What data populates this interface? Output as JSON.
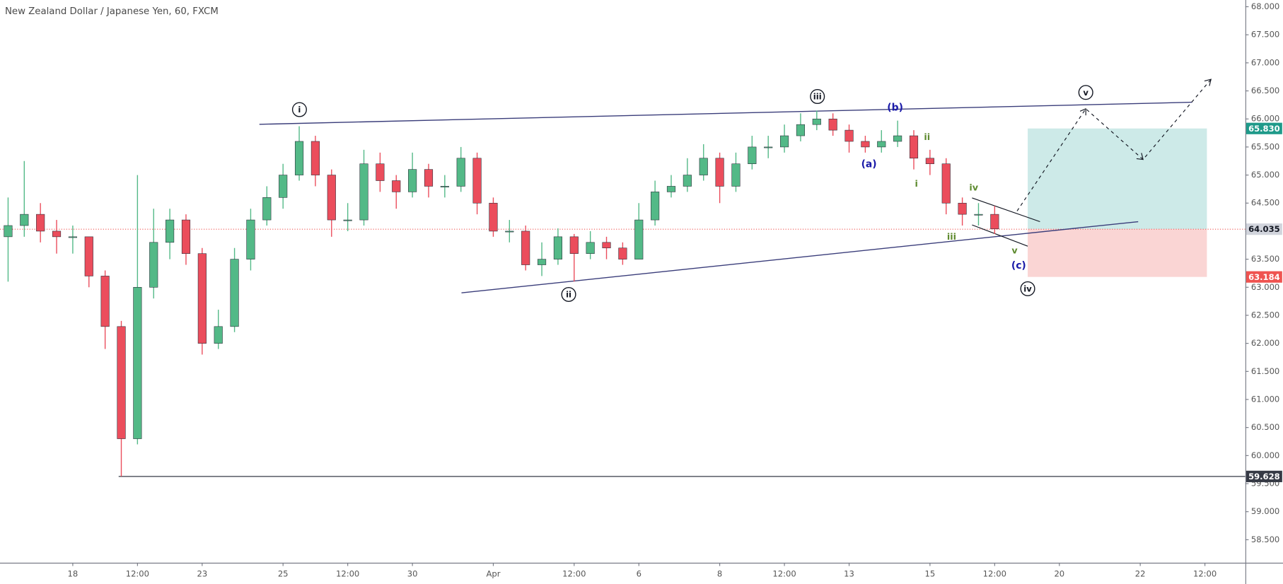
{
  "chart_data": {
    "type": "candlestick",
    "title": "New Zealand Dollar / Japanese Yen, 60, FXCM",
    "up_color": "#53b987",
    "down_color": "#eb4d5c",
    "grid": false,
    "categories": [
      null,
      null,
      null,
      null,
      "18",
      null,
      null,
      null,
      "12:00",
      null,
      null,
      null,
      "23",
      null,
      null,
      null,
      null,
      "25",
      null,
      null,
      null,
      "12:00",
      null,
      null,
      null,
      "30",
      null,
      null,
      null,
      null,
      "Apr",
      null,
      null,
      null,
      null,
      "12:00",
      null,
      null,
      null,
      "6",
      null,
      null,
      null,
      null,
      "8",
      null,
      null,
      null,
      "12:00",
      null,
      null,
      null,
      "13",
      null,
      null,
      null,
      null,
      "15",
      null,
      null,
      null,
      "12:00",
      null,
      null,
      null,
      "20",
      null,
      null,
      null,
      null,
      "22",
      null,
      null,
      null,
      "12:00",
      null,
      null
    ],
    "open": [
      63.9,
      64.1,
      64.3,
      64.0,
      63.9,
      63.9,
      63.2,
      62.3,
      60.3,
      63.0,
      63.8,
      64.2,
      63.6,
      62.0,
      62.3,
      63.5,
      64.2,
      64.6,
      65.0,
      65.6,
      65.0,
      64.2,
      64.2,
      65.2,
      64.9,
      64.7,
      65.1,
      64.8,
      64.8,
      65.3,
      64.5,
      64.0,
      64.0,
      63.4,
      63.5,
      63.9,
      63.6,
      63.8,
      63.7,
      63.5,
      64.2,
      64.7,
      64.8,
      65.0,
      65.3,
      64.8,
      65.2,
      65.5,
      65.5,
      65.7,
      65.9,
      66.0,
      65.8,
      65.6,
      65.5,
      65.6,
      65.7,
      65.3,
      65.2,
      64.5,
      64.3,
      64.3,
      null,
      null,
      null,
      null,
      null,
      null,
      null,
      null,
      null,
      null,
      null,
      null,
      null,
      null,
      null
    ],
    "high": [
      64.6,
      65.25,
      64.5,
      64.2,
      64.1,
      63.9,
      63.3,
      62.4,
      65.0,
      64.4,
      64.4,
      64.3,
      63.7,
      62.6,
      63.7,
      64.4,
      64.8,
      65.2,
      65.87,
      65.7,
      65.1,
      64.5,
      65.45,
      65.4,
      65.0,
      65.4,
      65.2,
      65.0,
      65.5,
      65.4,
      64.6,
      64.2,
      64.1,
      63.8,
      64.05,
      63.95,
      64.0,
      63.9,
      63.8,
      64.5,
      64.9,
      65.0,
      65.3,
      65.55,
      65.4,
      65.4,
      65.7,
      65.7,
      65.9,
      66.1,
      66.15,
      66.1,
      65.9,
      65.7,
      65.8,
      65.97,
      65.8,
      65.45,
      65.3,
      64.6,
      64.5,
      64.45,
      null,
      null,
      null,
      null,
      null,
      null,
      null,
      null,
      null,
      null,
      null,
      null,
      null,
      null,
      null
    ],
    "low": [
      63.1,
      63.9,
      63.8,
      63.6,
      63.6,
      63.0,
      61.9,
      59.63,
      60.2,
      62.8,
      63.5,
      63.4,
      61.8,
      61.9,
      62.2,
      63.3,
      64.1,
      64.4,
      64.9,
      64.8,
      63.9,
      64.0,
      64.1,
      64.7,
      64.4,
      64.6,
      64.6,
      64.6,
      64.7,
      64.3,
      63.9,
      63.8,
      63.3,
      63.2,
      63.4,
      63.1,
      63.5,
      63.5,
      63.4,
      63.5,
      64.1,
      64.6,
      64.7,
      64.9,
      64.5,
      64.7,
      65.1,
      65.3,
      65.4,
      65.6,
      65.8,
      65.7,
      65.4,
      65.4,
      65.4,
      65.5,
      65.1,
      65.0,
      64.3,
      64.1,
      64.1,
      63.95,
      null,
      null,
      null,
      null,
      null,
      null,
      null,
      null,
      null,
      null,
      null,
      null,
      null,
      null,
      null
    ],
    "close": [
      64.1,
      64.3,
      64.0,
      63.9,
      63.9,
      63.2,
      62.3,
      60.3,
      63.0,
      63.8,
      64.2,
      63.6,
      62.0,
      62.3,
      63.5,
      64.2,
      64.6,
      65.0,
      65.6,
      65.0,
      64.2,
      64.2,
      65.2,
      64.9,
      64.7,
      65.1,
      64.8,
      64.8,
      65.3,
      64.5,
      64.0,
      64.0,
      63.4,
      63.5,
      63.9,
      63.6,
      63.8,
      63.7,
      63.5,
      64.2,
      64.7,
      64.8,
      65.0,
      65.3,
      64.8,
      65.2,
      65.5,
      65.5,
      65.7,
      65.9,
      66.0,
      65.8,
      65.6,
      65.5,
      65.6,
      65.7,
      65.3,
      65.2,
      64.5,
      64.3,
      64.3,
      64.04,
      null,
      null,
      null,
      null,
      null,
      null,
      null,
      null,
      null,
      null,
      null,
      null,
      null,
      null,
      null
    ],
    "ylim": [
      58.09,
      68.12
    ],
    "yticks": [
      {
        "value": 58.5,
        "label": "58.500"
      },
      {
        "value": 59,
        "label": "59.000"
      },
      {
        "value": 59.5,
        "label": "59.500"
      },
      {
        "value": 60,
        "label": "60.000"
      },
      {
        "value": 60.5,
        "label": "60.500"
      },
      {
        "value": 61,
        "label": "61.000"
      },
      {
        "value": 61.5,
        "label": "61.500"
      },
      {
        "value": 62,
        "label": "62.000"
      },
      {
        "value": 62.5,
        "label": "62.500"
      },
      {
        "value": 63,
        "label": "63.000"
      },
      {
        "value": 63.5,
        "label": "63.500"
      },
      {
        "value": 64,
        "label": "64.000"
      },
      {
        "value": 64.5,
        "label": "64.500"
      },
      {
        "value": 65,
        "label": "65.000"
      },
      {
        "value": 65.5,
        "label": "65.500"
      },
      {
        "value": 66,
        "label": "66.000"
      },
      {
        "value": 66.5,
        "label": "66.500"
      },
      {
        "value": 67,
        "label": "67.000"
      },
      {
        "value": 67.5,
        "label": "67.500"
      },
      {
        "value": 68,
        "label": "68.000"
      }
    ],
    "price_labels": [
      {
        "value": 65.83,
        "label": "65.830",
        "color": "#1f9a8a",
        "text_color": "#ffffff"
      },
      {
        "value": 64.035,
        "label": "64.035",
        "color": "#d1d4dc",
        "text_color": "#131722"
      },
      {
        "value": 63.184,
        "label": "63.184",
        "color": "#ef5350",
        "text_color": "#ffffff"
      },
      {
        "value": 59.628,
        "label": "59.628",
        "color": "#363a45",
        "text_color": "#ffffff"
      }
    ],
    "primary_waves": {
      "color": "#131722",
      "labels": [
        "i",
        "ii",
        "iii",
        "iv",
        "v"
      ]
    },
    "minor_waves": {
      "color": "#1a1aa8",
      "labels": [
        "(a)",
        "(b)",
        "(c)"
      ]
    },
    "sub_waves": {
      "color": "#5d8a2e",
      "labels": [
        "i",
        "ii",
        "iii",
        "iv",
        "v"
      ]
    }
  }
}
